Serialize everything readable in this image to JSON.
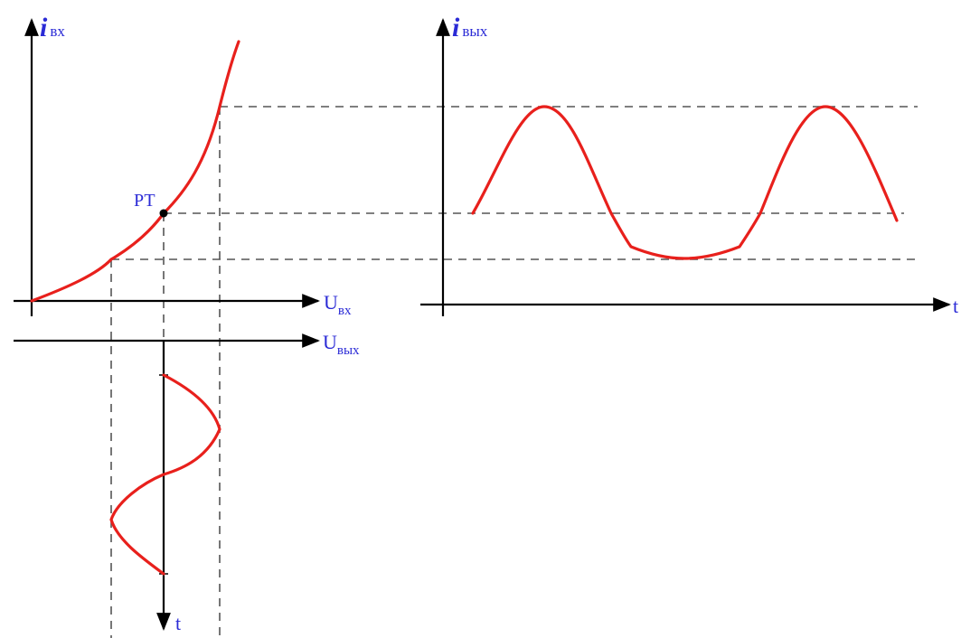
{
  "labels": {
    "left_y_axis_main": "i",
    "left_y_axis_sub": "вх",
    "left_x_axis_main": "U",
    "left_x_axis_sub": "вх",
    "output_axis_main": "U",
    "output_axis_sub": "вых",
    "time_axis": "t",
    "right_y_axis_main": "i",
    "right_y_axis_sub": "вых",
    "right_x_axis": "t",
    "operating_point": "РТ"
  },
  "colors": {
    "curve": "#e8201c",
    "axis": "#000000",
    "dashed": "#555555",
    "label": "#2b2bd6"
  }
}
